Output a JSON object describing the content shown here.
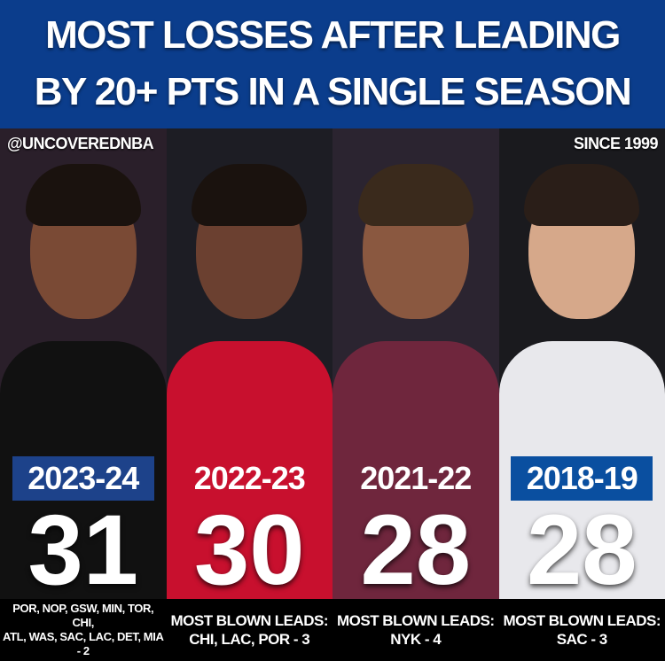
{
  "header": {
    "line1": "MOST LOSSES AFTER LEADING",
    "line2": "BY 20+ PTS IN A SINGLE SEASON",
    "background": "#0b3d8c"
  },
  "handle": "@UNCOVEREDNBA",
  "since": "SINCE 1999",
  "columns": [
    {
      "season": "2023-24",
      "losses": "31",
      "badge_color": "#1d428a",
      "jersey_color": "#111111",
      "bg": "#2a1f2a",
      "note": [
        "POR, NOP, GSW, MIN, TOR, CHI,",
        "ATL, WAS, SAC, LAC, DET, MIA - 2"
      ]
    },
    {
      "season": "2022-23",
      "losses": "30",
      "badge_color": "#c8102e",
      "jersey_color": "#c8102e",
      "bg": "#1d1d24",
      "note": [
        "MOST BLOWN LEADS:",
        "CHI, LAC, POR - 3"
      ]
    },
    {
      "season": "2021-22",
      "losses": "28",
      "badge_color": "#6f263d",
      "jersey_color": "#6f263d",
      "bg": "#2b2430",
      "note": [
        "MOST BLOWN LEADS:",
        "NYK - 4"
      ]
    },
    {
      "season": "2018-19",
      "losses": "28",
      "badge_color": "#0a4fa0",
      "jersey_color": "#e8e8ec",
      "bg": "#1a1a1e",
      "note": [
        "MOST BLOWN LEADS:",
        "SAC - 3"
      ]
    }
  ]
}
